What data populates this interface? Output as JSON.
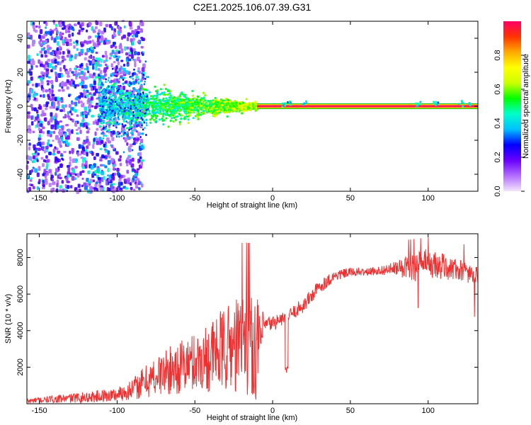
{
  "title": "C2E1.2025.106.07.39.G31",
  "chart_data": [
    {
      "type": "heatmap",
      "xlabel": "Height of straight line (km)",
      "ylabel": "Frequency (Hz)",
      "xlim": [
        -158,
        132
      ],
      "ylim": [
        -50,
        50
      ],
      "xticks": [
        -150,
        -100,
        -50,
        0,
        50,
        100
      ],
      "yticks": [
        -40,
        -20,
        0,
        20,
        40
      ],
      "colorbar": {
        "label": "Normalized spectral amplitude",
        "range": [
          0.0,
          1.0
        ],
        "ticks": [
          0.0,
          0.2,
          0.4,
          0.6,
          0.8
        ],
        "colors": [
          "#f2e6fb",
          "#b36cff",
          "#6a00ff",
          "#0000ff",
          "#00bfff",
          "#00ffcc",
          "#00ff00",
          "#ccff00",
          "#ffff00",
          "#ffaa00",
          "#ff3300",
          "#ff0066"
        ]
      },
      "features": [
        {
          "description": "steady signal line",
          "x_range": [
            -10,
            132
          ],
          "frequency": 0,
          "amplitude": 0.95
        },
        {
          "description": "noisy scattered signal",
          "x_range": [
            -158,
            -85
          ],
          "frequency_spread": 50,
          "amplitude": 0.25
        },
        {
          "description": "transition band",
          "x_range": [
            -110,
            -10
          ],
          "frequency_spread": 8,
          "amplitude": 0.45
        }
      ]
    },
    {
      "type": "line",
      "xlabel": "Height of straight line (km)",
      "ylabel": "SNR (10 * v/v)",
      "xlim": [
        -158,
        132
      ],
      "ylim": [
        0,
        9300
      ],
      "xticks": [
        -150,
        -100,
        -50,
        0,
        50,
        100
      ],
      "yticks": [
        2000,
        4000,
        6000,
        8000
      ],
      "color": "#f03030",
      "anchors": {
        "x": [
          -158,
          -140,
          -120,
          -100,
          -90,
          -80,
          -70,
          -60,
          -50,
          -40,
          -30,
          -20,
          -10,
          -5,
          0,
          5,
          10,
          20,
          30,
          40,
          50,
          60,
          70,
          80,
          90,
          100,
          110,
          120,
          132
        ],
        "mean": [
          150,
          250,
          350,
          500,
          800,
          1300,
          1700,
          2000,
          2300,
          2600,
          3000,
          3300,
          3000,
          4300,
          4400,
          4600,
          4800,
          5400,
          6400,
          7000,
          7200,
          7200,
          7300,
          7400,
          7500,
          7600,
          7500,
          7300,
          7000
        ],
        "noise": [
          150,
          200,
          300,
          400,
          600,
          1000,
          1200,
          1500,
          1600,
          2000,
          2400,
          2800,
          2800,
          500,
          450,
          400,
          350,
          450,
          400,
          300,
          250,
          200,
          250,
          400,
          800,
          900,
          700,
          600,
          500
        ]
      },
      "sample_count": 1200
    }
  ]
}
